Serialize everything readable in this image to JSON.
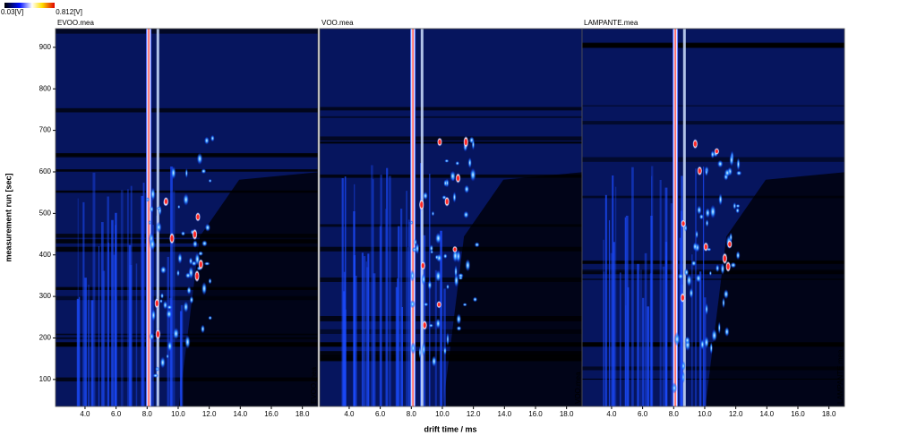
{
  "figure": {
    "xlabel": "drift time / ms",
    "ylabel": "measurement run [sec]",
    "colorbar": {
      "min": {
        "value": 0.03,
        "label": "0.03[V]"
      },
      "max": {
        "value": 0.812,
        "label": "0.812[V]"
      }
    }
  },
  "chart_data": [
    {
      "type": "heatmap",
      "title": "EVOO.mea",
      "xlim": [
        2.1,
        19.0
      ],
      "ylim": [
        35,
        945
      ],
      "xticks": [
        {
          "value": 4,
          "label": "4.0"
        },
        {
          "value": 6,
          "label": "6.0"
        },
        {
          "value": 8,
          "label": "8.0"
        },
        {
          "value": 10,
          "label": "10.0"
        },
        {
          "value": 12,
          "label": "12.0"
        },
        {
          "value": 14,
          "label": "14.0"
        },
        {
          "value": 16,
          "label": "16.0"
        },
        {
          "value": 18,
          "label": "18.0"
        }
      ],
      "yticks": [
        100,
        200,
        300,
        400,
        500,
        600,
        700,
        800,
        900
      ]
    },
    {
      "type": "heatmap",
      "title": "VOO.mea",
      "xlim": [
        2.1,
        19.0
      ],
      "ylim": [
        35,
        945
      ],
      "xticks": [
        {
          "value": 4,
          "label": "4.0"
        },
        {
          "value": 6,
          "label": "6.0"
        },
        {
          "value": 8,
          "label": "8.0"
        },
        {
          "value": 10,
          "label": "10.0"
        },
        {
          "value": 12,
          "label": "12.0"
        },
        {
          "value": 14,
          "label": "14.0"
        },
        {
          "value": 16,
          "label": "16.0"
        },
        {
          "value": 18,
          "label": "18.0"
        }
      ]
    },
    {
      "type": "heatmap",
      "title": "LAMPANTE.mea",
      "xlim": [
        2.1,
        19.0
      ],
      "ylim": [
        35,
        945
      ],
      "xticks": [
        {
          "value": 4,
          "label": "4.0"
        },
        {
          "value": 6,
          "label": "6.0"
        },
        {
          "value": 8,
          "label": "8.0"
        },
        {
          "value": 10,
          "label": "10.0"
        },
        {
          "value": 12,
          "label": "12.0"
        },
        {
          "value": 14,
          "label": "14.0"
        },
        {
          "value": 16,
          "label": "16.0"
        },
        {
          "value": 18,
          "label": "18.0"
        }
      ]
    }
  ]
}
